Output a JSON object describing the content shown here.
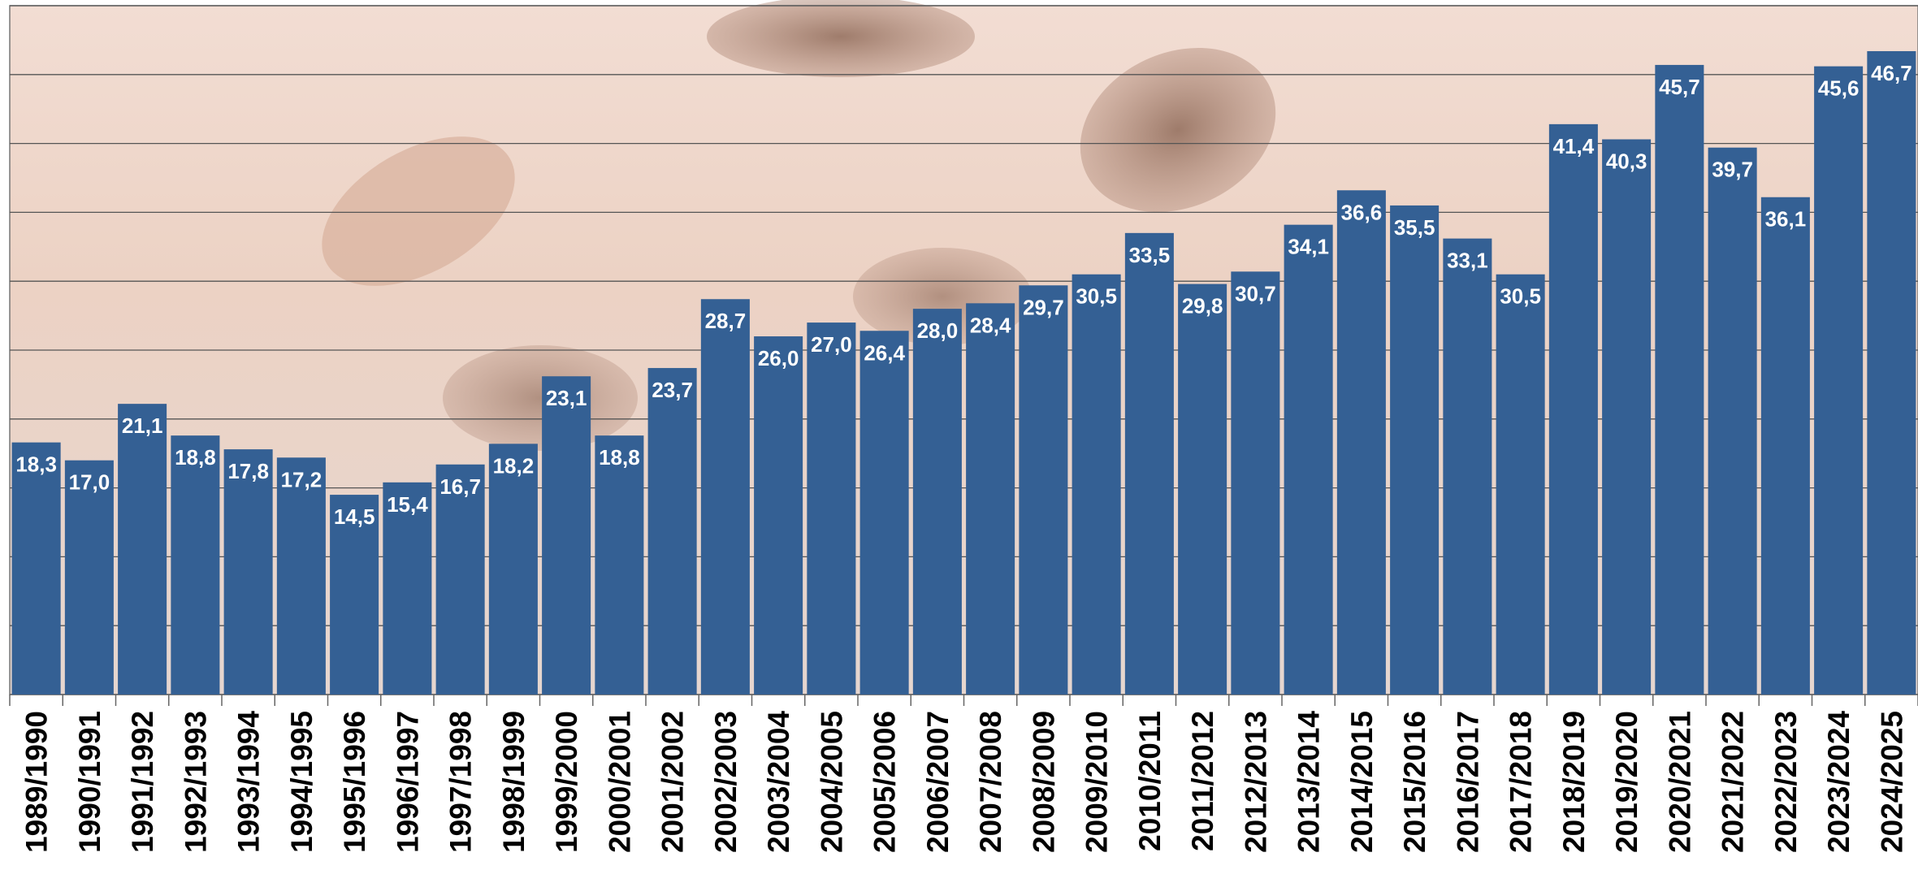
{
  "chart_data": {
    "type": "bar",
    "categories": [
      "1989/1990",
      "1990/1991",
      "1991/1992",
      "1992/1993",
      "1993/1994",
      "1994/1995",
      "1995/1996",
      "1996/1997",
      "1997/1998",
      "1998/1999",
      "1999/2000",
      "2000/2001",
      "2001/2002",
      "2002/2003",
      "2003/2004",
      "2004/2005",
      "2005/2006",
      "2006/2007",
      "2007/2008",
      "2008/2009",
      "2009/2010",
      "2010/2011",
      "2011/2012",
      "2012/2013",
      "2013/2014",
      "2014/2015",
      "2015/2016",
      "2016/2017",
      "2017/2018",
      "2018/2019",
      "2019/2020",
      "2020/2021",
      "2021/2022",
      "2022/2023",
      "2023/2024",
      "2024/2025"
    ],
    "values": [
      18.3,
      17.0,
      21.1,
      18.8,
      17.8,
      17.2,
      14.5,
      15.4,
      16.7,
      18.2,
      23.1,
      18.8,
      23.7,
      28.7,
      26.0,
      27.0,
      26.4,
      28.0,
      28.4,
      29.7,
      30.5,
      33.5,
      29.8,
      30.7,
      34.1,
      36.6,
      35.5,
      33.1,
      30.5,
      41.4,
      40.3,
      45.7,
      39.7,
      36.1,
      45.6,
      46.7
    ],
    "value_labels": [
      "18,3",
      "17,0",
      "21,1",
      "18,8",
      "17,8",
      "17,2",
      "14,5",
      "15,4",
      "16,7",
      "18,2",
      "23,1",
      "18,8",
      "23,7",
      "28,7",
      "26,0",
      "27,0",
      "26,4",
      "28,0",
      "28,4",
      "29,7",
      "30,5",
      "33,5",
      "29,8",
      "30,7",
      "34,1",
      "36,6",
      "35,5",
      "33,1",
      "30,5",
      "41,4",
      "40,3",
      "45,7",
      "39,7",
      "36,1",
      "45,6",
      "46,7"
    ],
    "color": "#346094",
    "ylim": [
      0,
      50
    ],
    "yticks": [
      0,
      5,
      10,
      15,
      20,
      25,
      30,
      35,
      40,
      45,
      50
    ],
    "grid": true
  }
}
